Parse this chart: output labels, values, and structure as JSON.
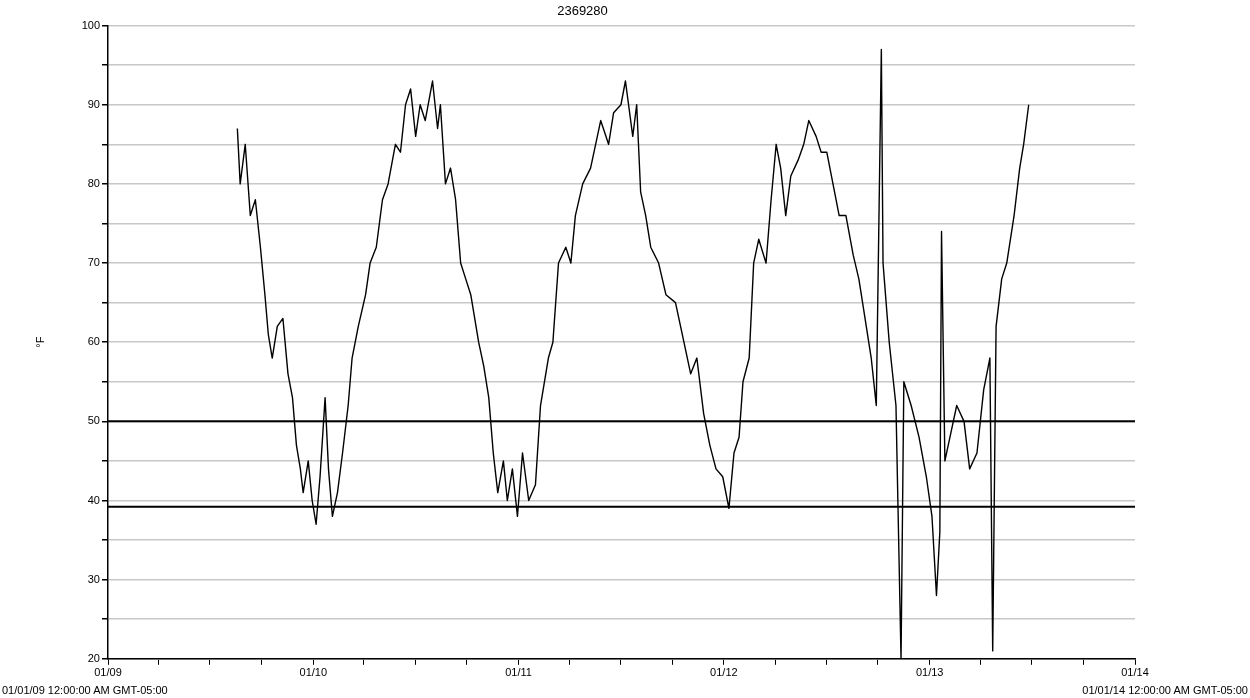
{
  "chart_data": {
    "type": "line",
    "title": "2369280",
    "ylabel": "°F",
    "x": [
      "2009-08-19",
      "2009-08-24",
      "2009-09-02",
      "2009-09-11",
      "2009-09-20",
      "2009-09-29",
      "2009-10-07",
      "2009-10-13",
      "2009-10-20",
      "2009-10-29",
      "2009-11-08",
      "2009-11-17",
      "2009-11-25",
      "2009-12-02",
      "2009-12-09",
      "2009-12-14",
      "2009-12-23",
      "2009-12-30",
      "2010-01-06",
      "2010-01-13",
      "2010-01-22",
      "2010-01-28",
      "2010-02-04",
      "2010-02-13",
      "2010-02-22",
      "2010-03-04",
      "2010-03-11",
      "2010-03-22",
      "2010-04-04",
      "2010-04-12",
      "2010-04-23",
      "2010-05-04",
      "2010-05-14",
      "2010-05-27",
      "2010-06-05",
      "2010-06-14",
      "2010-06-23",
      "2010-07-02",
      "2010-07-10",
      "2010-07-19",
      "2010-08-01",
      "2010-08-10",
      "2010-08-15",
      "2010-08-24",
      "2010-09-02",
      "2010-09-11",
      "2010-09-20",
      "2010-09-29",
      "2010-10-08",
      "2010-10-22",
      "2010-10-31",
      "2010-11-09",
      "2010-11-17",
      "2010-11-25",
      "2010-12-05",
      "2010-12-12",
      "2010-12-21",
      "2010-12-30",
      "2011-01-08",
      "2011-01-19",
      "2011-01-31",
      "2011-02-09",
      "2011-02-23",
      "2011-03-03",
      "2011-03-13",
      "2011-03-26",
      "2011-04-04",
      "2011-04-12",
      "2011-04-25",
      "2011-05-09",
      "2011-05-27",
      "2011-06-10",
      "2011-06-19",
      "2011-07-02",
      "2011-07-10",
      "2011-07-23",
      "2011-07-30",
      "2011-08-06",
      "2011-08-15",
      "2011-08-24",
      "2011-09-07",
      "2011-09-20",
      "2011-10-07",
      "2011-10-22",
      "2011-11-03",
      "2011-11-14",
      "2011-11-26",
      "2011-12-07",
      "2011-12-18",
      "2011-12-30",
      "2012-01-10",
      "2012-01-19",
      "2012-01-28",
      "2012-02-04",
      "2012-02-15",
      "2012-02-23",
      "2012-03-03",
      "2012-03-16",
      "2012-03-25",
      "2012-04-03",
      "2012-04-11",
      "2012-04-20",
      "2012-04-29",
      "2012-05-12",
      "2012-05-22",
      "2012-05-31",
      "2012-06-13",
      "2012-06-22",
      "2012-07-02",
      "2012-07-13",
      "2012-07-24",
      "2012-08-05",
      "2012-08-18",
      "2012-08-28",
      "2012-09-08",
      "2012-09-19",
      "2012-09-28",
      "2012-10-07",
      "2012-10-10",
      "2012-10-21",
      "2012-11-02",
      "2012-11-11",
      "2012-11-16",
      "2012-11-29",
      "2012-12-13",
      "2012-12-26",
      "2013-01-05",
      "2013-01-13",
      "2013-01-19",
      "2013-01-22",
      "2013-01-28",
      "2013-02-06",
      "2013-02-18",
      "2013-03-03",
      "2013-03-13",
      "2013-03-26",
      "2013-04-07",
      "2013-04-18",
      "2013-04-23",
      "2013-04-29",
      "2013-05-09",
      "2013-05-18",
      "2013-05-31",
      "2013-06-10",
      "2013-06-17",
      "2013-06-26"
    ],
    "series": [
      {
        "color": "#000000",
        "values": [
          87,
          80,
          85,
          76,
          78,
          72,
          66,
          61,
          58,
          62,
          63,
          56,
          53,
          47,
          44,
          41,
          45,
          40,
          37,
          43,
          53,
          44,
          38,
          41,
          46,
          52,
          58,
          62,
          66,
          70,
          72,
          78,
          80,
          85,
          84,
          90,
          92,
          86,
          90,
          88,
          93,
          87,
          90,
          80,
          82,
          78,
          70,
          68,
          66,
          60,
          57,
          53,
          46,
          41,
          45,
          40,
          44,
          38,
          46,
          40,
          42,
          52,
          58,
          60,
          70,
          72,
          70,
          76,
          80,
          82,
          88,
          85,
          89,
          90,
          93,
          86,
          90,
          79,
          76,
          72,
          70,
          66,
          65,
          60,
          56,
          58,
          51,
          47,
          44,
          43,
          39,
          46,
          48,
          55,
          58,
          70,
          73,
          70,
          78,
          85,
          82,
          76,
          81,
          83,
          85,
          88,
          86,
          84,
          84,
          80,
          76,
          76,
          71,
          68,
          63,
          58,
          52,
          97,
          70,
          60,
          52,
          20,
          55,
          52,
          48,
          43,
          38,
          28,
          36,
          74,
          45,
          48,
          52,
          50,
          44,
          46,
          54,
          58,
          21,
          62,
          68,
          70,
          76,
          82,
          85,
          90
        ]
      }
    ],
    "xlim": [
      "2009-01-01",
      "2014-01-01"
    ],
    "xticks": [
      {
        "value": "2009-01-01",
        "label": "01/09"
      },
      {
        "value": "2009-04-01",
        "label": null
      },
      {
        "value": "2009-07-01",
        "label": null
      },
      {
        "value": "2009-10-01",
        "label": null
      },
      {
        "value": "2010-01-01",
        "label": "01/10"
      },
      {
        "value": "2010-04-01",
        "label": null
      },
      {
        "value": "2010-07-01",
        "label": null
      },
      {
        "value": "2010-10-01",
        "label": null
      },
      {
        "value": "2011-01-01",
        "label": "01/11"
      },
      {
        "value": "2011-04-01",
        "label": null
      },
      {
        "value": "2011-07-01",
        "label": null
      },
      {
        "value": "2011-10-01",
        "label": null
      },
      {
        "value": "2012-01-01",
        "label": "01/12"
      },
      {
        "value": "2012-04-01",
        "label": null
      },
      {
        "value": "2012-07-01",
        "label": null
      },
      {
        "value": "2012-10-01",
        "label": null
      },
      {
        "value": "2013-01-01",
        "label": "01/13"
      },
      {
        "value": "2013-04-01",
        "label": null
      },
      {
        "value": "2013-07-01",
        "label": null
      },
      {
        "value": "2013-10-01",
        "label": null
      },
      {
        "value": "2014-01-01",
        "label": "01/14"
      }
    ],
    "ylim": [
      20,
      100
    ],
    "yticks": [
      20,
      {
        "value": 25,
        "label": null
      },
      30,
      {
        "value": 35,
        "label": null
      },
      40,
      {
        "value": 45,
        "label": null
      },
      50,
      {
        "value": 55,
        "label": null
      },
      60,
      {
        "value": 65,
        "label": null
      },
      70,
      {
        "value": 75,
        "label": null
      },
      80,
      {
        "value": 85,
        "label": null
      },
      90,
      {
        "value": 95,
        "label": null
      },
      100
    ],
    "ref_lines": [
      {
        "axis": "y",
        "value": 50,
        "color": "#000000"
      },
      {
        "axis": "y",
        "value": 39.2,
        "color": "#000000"
      }
    ],
    "annotations": [
      "01/01/09 12:00:00 AM GMT-05:00",
      "01/01/14 12:00:00 AM GMT-05:00"
    ],
    "grid": "y",
    "legend": false,
    "marker": "none",
    "line_style": "solid"
  }
}
